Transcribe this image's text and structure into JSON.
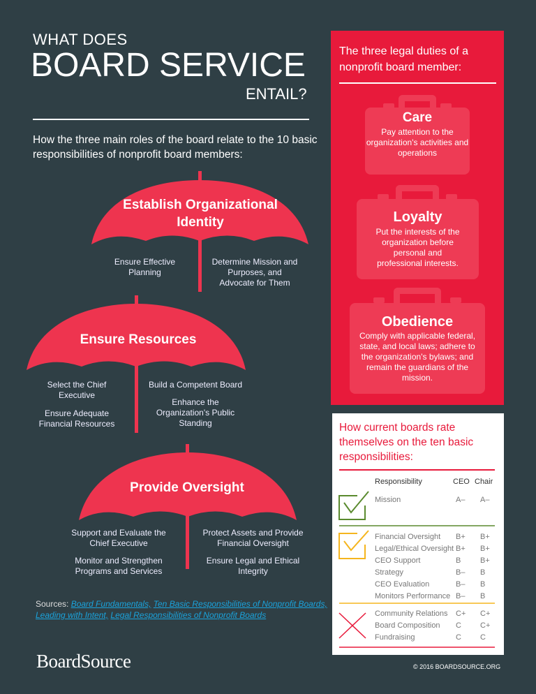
{
  "header": {
    "line1": "WHAT DOES",
    "line2": "BOARD SERVICE",
    "line3": "ENTAIL?",
    "subtitle": "How the three main roles of the board relate to the 10 basic responsibilities of nonprofit board members:"
  },
  "umbrellas": [
    {
      "title": "Establish Organizational Identity",
      "left": [
        "Ensure Effective Planning"
      ],
      "right": [
        "Determine Mission and Purposes, and Advocate for Them"
      ]
    },
    {
      "title": "Ensure Resources",
      "left": [
        "Select the Chief Executive",
        "Ensure Adequate Financial Resources"
      ],
      "right": [
        "Build a Competent Board",
        "Enhance the Organization's Public Standing"
      ]
    },
    {
      "title": "Provide Oversight",
      "left": [
        "Support and Evaluate the Chief Executive",
        "Monitor and Strengthen Programs and Services"
      ],
      "right": [
        "Protect Assets and Provide Financial Oversight",
        "Ensure Legal and Ethical Integrity"
      ]
    }
  ],
  "duties": {
    "title": "The three legal duties of a nonprofit board member:",
    "items": [
      {
        "name": "Care",
        "desc": "Pay attention to the organization's activities and operations"
      },
      {
        "name": "Loyalty",
        "desc": "Put the interests of the organization before personal and professional interests."
      },
      {
        "name": "Obedience",
        "desc": "Comply with applicable federal, state, and local laws; adhere to the organization's bylaws; and remain the guardians of the mission."
      }
    ]
  },
  "ratings": {
    "title": "How current boards rate themselves on the ten basic responsibilities:",
    "headers": [
      "Responsibility",
      "CEO",
      "Chair"
    ],
    "groups": [
      {
        "icon": "check-icon",
        "color": "#5a8a2e",
        "rows": [
          [
            "Mission",
            "A–",
            "A–"
          ]
        ]
      },
      {
        "icon": "check-icon",
        "color": "#f5b51e",
        "rows": [
          [
            "Financial Oversight",
            "B+",
            "B+"
          ],
          [
            "Legal/Ethical Oversight",
            "B+",
            "B+"
          ],
          [
            "CEO Support",
            "B",
            "B+"
          ],
          [
            "Strategy",
            "B–",
            "B"
          ],
          [
            "CEO Evaluation",
            "B–",
            "B"
          ],
          [
            "Monitors Performance",
            "B–",
            "B"
          ]
        ]
      },
      {
        "icon": "x-icon",
        "color": "#e81a3b",
        "rows": [
          [
            "Community Relations",
            "C+",
            "C+"
          ],
          [
            "Board Composition",
            "C",
            "C+"
          ],
          [
            "Fundraising",
            "C",
            "C"
          ]
        ]
      }
    ]
  },
  "sources": {
    "label": "Sources:",
    "links": [
      "Board Fundamentals,",
      "Ten Basic Responsibilities of Nonprofit Boards,",
      "Leading with Intent,",
      "Legal Responsibilities of Nonprofit Boards"
    ]
  },
  "footer": {
    "logo": "BoardSource",
    "copyright": "© 2016 BOARDSOURCE.ORG"
  },
  "colors": {
    "background": "#2f3f45",
    "accent": "#e81a3b",
    "umbrella": "#ee344f",
    "link": "#1aa3dc"
  }
}
